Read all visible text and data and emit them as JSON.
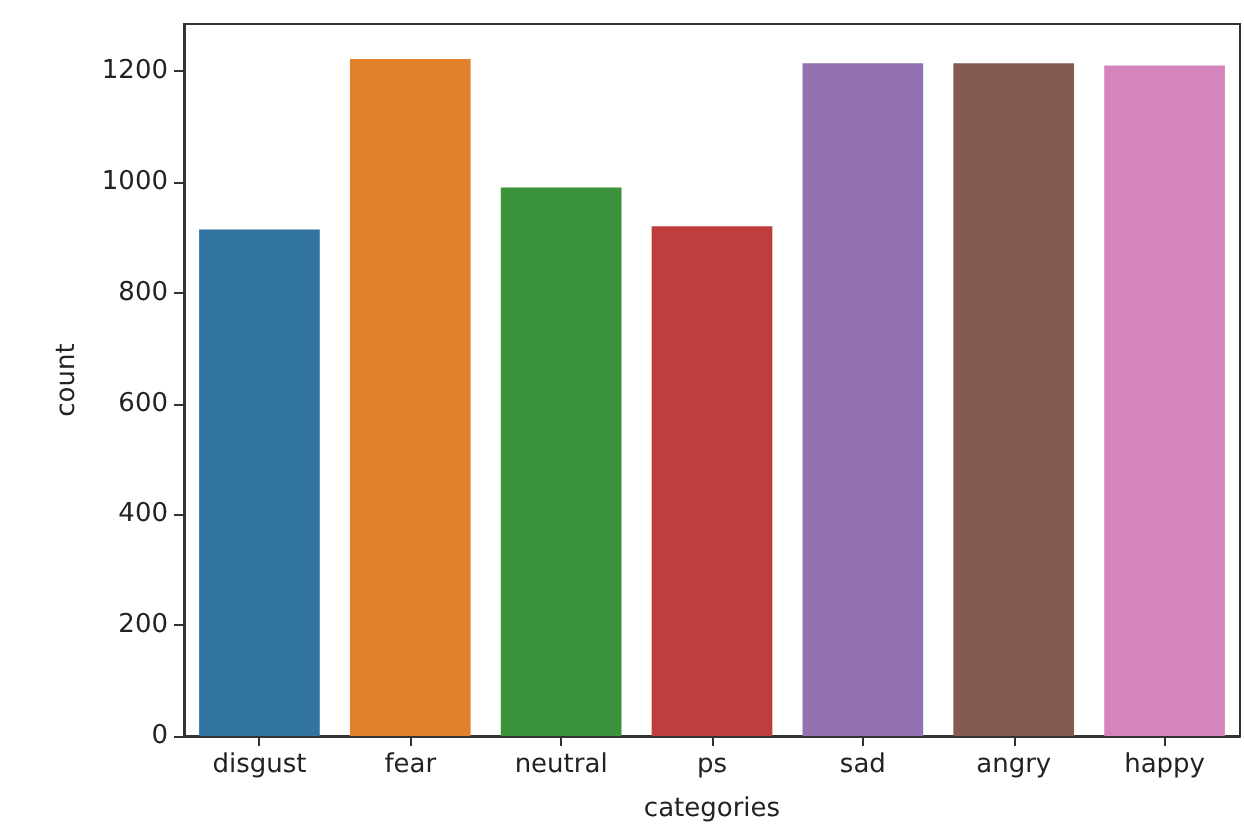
{
  "chart_data": {
    "type": "bar",
    "xlabel": "categories",
    "ylabel": "count",
    "categories": [
      "disgust",
      "fear",
      "neutral",
      "ps",
      "sad",
      "angry",
      "happy"
    ],
    "values": [
      914,
      1222,
      990,
      920,
      1214,
      1214,
      1210
    ],
    "colors": [
      "#3274a1",
      "#e1812c",
      "#3a923a",
      "#c03d3e",
      "#9372b2",
      "#845b53",
      "#d684bd"
    ],
    "ylim": [
      0,
      1285
    ],
    "yticks": [
      0,
      200,
      400,
      600,
      800,
      1000,
      1200
    ]
  }
}
